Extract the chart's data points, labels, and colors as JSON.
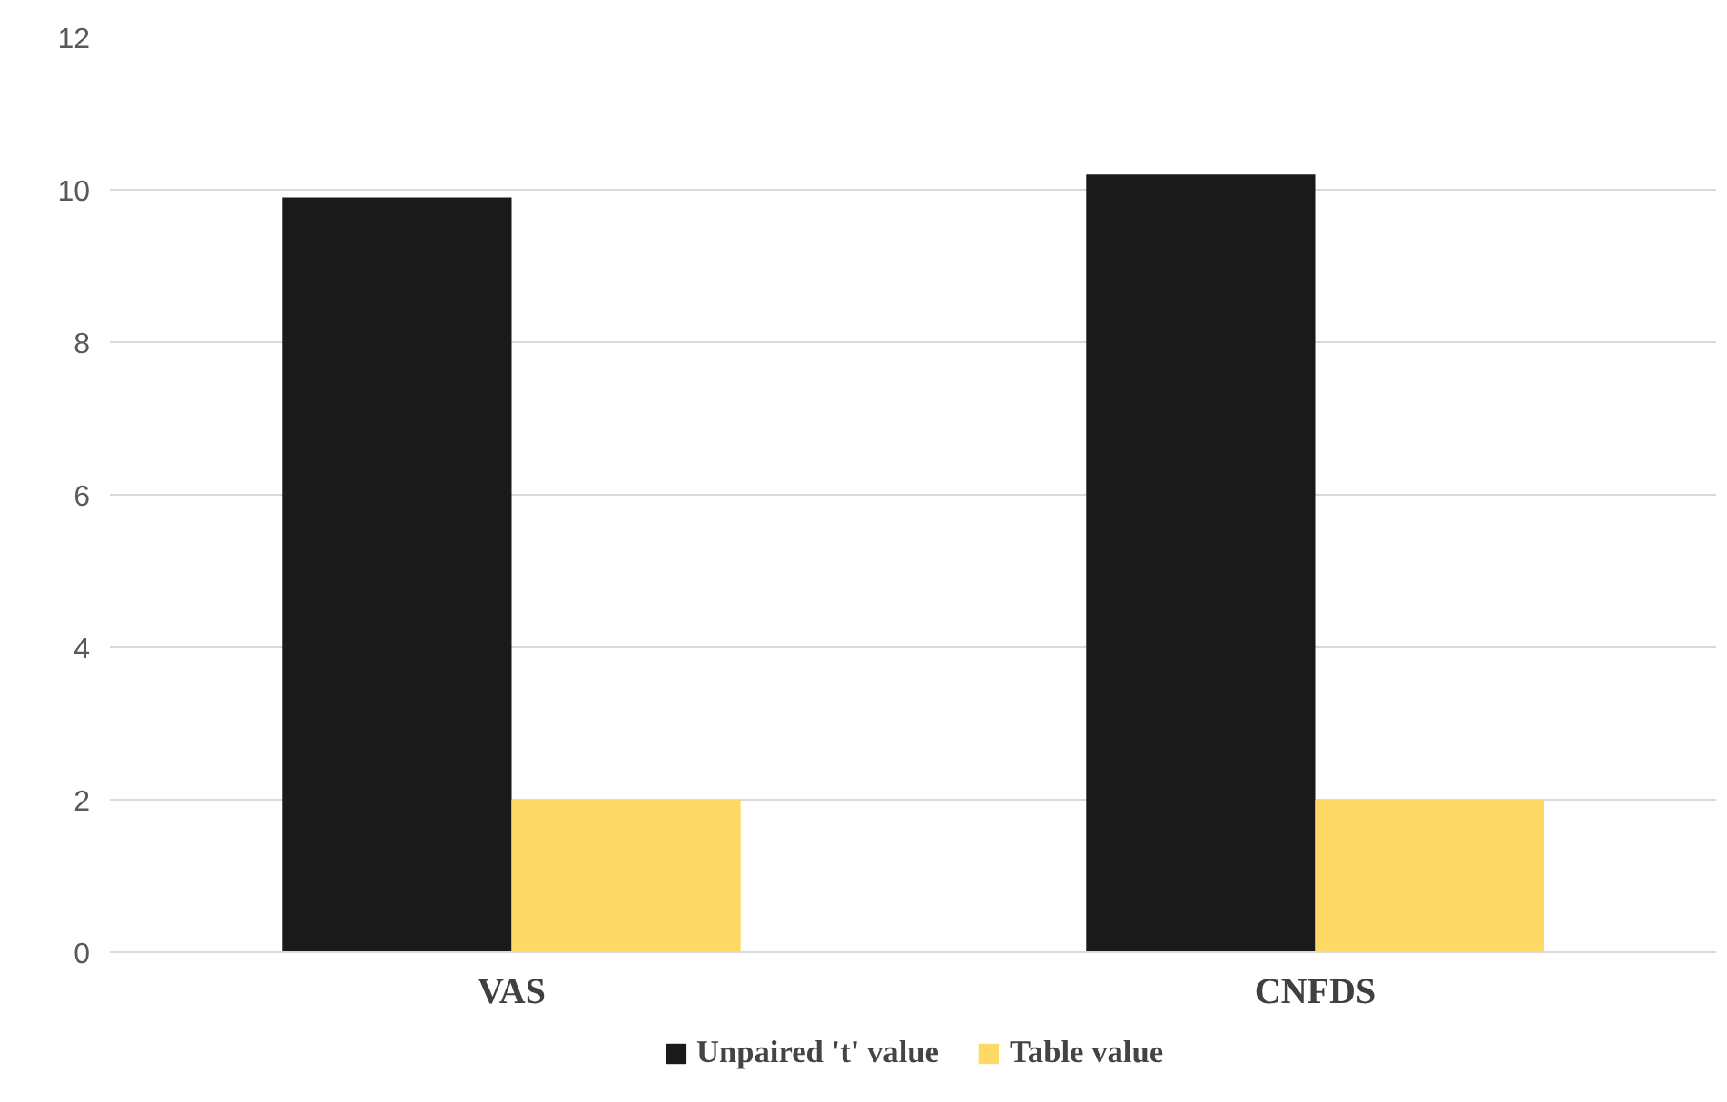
{
  "chart_data": {
    "type": "bar",
    "categories": [
      "VAS",
      "CNFDS"
    ],
    "series": [
      {
        "name": "Unpaired 't' value",
        "color": "#1a1a1a",
        "values": [
          9.9,
          10.2
        ]
      },
      {
        "name": "Table value",
        "color": "#ffd966",
        "values": [
          2.0,
          2.0
        ]
      }
    ],
    "ylim": [
      0,
      12
    ],
    "yticks": [
      0,
      2,
      4,
      6,
      8,
      10,
      12
    ],
    "grid": "y",
    "legend": "bottom"
  }
}
